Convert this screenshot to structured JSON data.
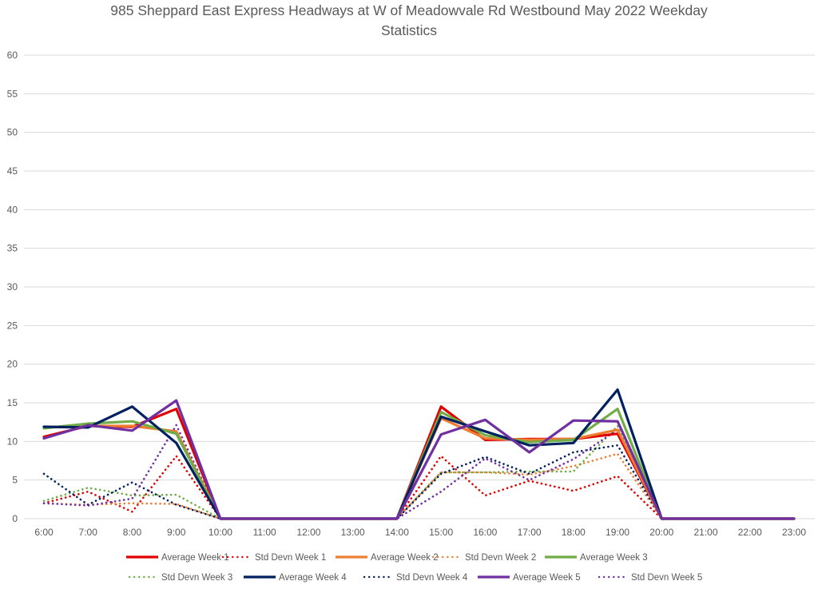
{
  "chart_data": {
    "type": "line",
    "title": "985 Sheppard East Express Headways at W of Meadowvale Rd Westbound May 2022 Weekday Statistics",
    "title_lines": [
      "985 Sheppard East Express Headways at W of Meadowvale Rd Westbound May 2022 Weekday",
      "Statistics"
    ],
    "xlabel": "",
    "ylabel": "",
    "ylim": [
      0,
      60
    ],
    "yticks": [
      0,
      5,
      10,
      15,
      20,
      25,
      30,
      35,
      40,
      45,
      50,
      55,
      60
    ],
    "grid": true,
    "legend_position": "bottom",
    "categories": [
      "6:00",
      "7:00",
      "8:00",
      "9:00",
      "10:00",
      "11:00",
      "12:00",
      "13:00",
      "14:00",
      "15:00",
      "16:00",
      "17:00",
      "18:00",
      "19:00",
      "20:00",
      "21:00",
      "22:00",
      "23:00"
    ],
    "series": [
      {
        "name": "Average Week 1",
        "color": "#e00000",
        "style": "solid",
        "values": [
          10.6,
          12.0,
          11.9,
          14.2,
          0,
          0,
          0,
          0,
          0,
          14.5,
          10.2,
          10.3,
          10.3,
          11.0,
          0,
          0,
          0,
          0
        ]
      },
      {
        "name": "Std Devn Week 1",
        "color": "#e00000",
        "style": "dotted",
        "values": [
          2.0,
          3.5,
          0.9,
          8.1,
          0,
          0,
          0,
          0,
          0,
          8.1,
          3.0,
          4.9,
          3.6,
          5.5,
          0,
          0,
          0,
          0
        ]
      },
      {
        "name": "Average Week 2",
        "color": "#ed7d31",
        "style": "solid",
        "values": [
          11.8,
          12.0,
          12.0,
          11.3,
          0,
          0,
          0,
          0,
          0,
          13.0,
          10.4,
          10.2,
          10.3,
          11.5,
          0,
          0,
          0,
          0
        ]
      },
      {
        "name": "Std Devn Week 2",
        "color": "#ed7d31",
        "style": "dotted",
        "values": [
          2.0,
          1.8,
          2.0,
          1.9,
          0,
          0,
          0,
          0,
          0,
          6.0,
          6.0,
          5.7,
          6.8,
          8.4,
          0,
          0,
          0,
          0
        ]
      },
      {
        "name": "Average Week 3",
        "color": "#70ad47",
        "style": "solid",
        "values": [
          11.7,
          12.3,
          12.6,
          11.0,
          0,
          0,
          0,
          0,
          0,
          13.8,
          10.8,
          9.9,
          10.2,
          14.2,
          0,
          0,
          0,
          0
        ]
      },
      {
        "name": "Std Devn Week 3",
        "color": "#70ad47",
        "style": "dotted",
        "values": [
          2.3,
          4.0,
          3.0,
          3.1,
          0,
          0,
          0,
          0,
          0,
          6.0,
          6.0,
          6.1,
          6.1,
          12.0,
          0,
          0,
          0,
          0
        ]
      },
      {
        "name": "Average Week 4",
        "color": "#002060",
        "style": "solid",
        "values": [
          11.9,
          11.8,
          14.5,
          9.8,
          0,
          0,
          0,
          0,
          0,
          13.2,
          11.3,
          9.5,
          9.8,
          16.7,
          0,
          0,
          0,
          0
        ]
      },
      {
        "name": "Std Devn Week 4",
        "color": "#002060",
        "style": "dotted",
        "values": [
          5.8,
          1.8,
          4.7,
          1.8,
          0,
          0,
          0,
          0,
          0,
          5.8,
          8.0,
          5.8,
          8.6,
          9.5,
          0,
          0,
          0,
          0
        ]
      },
      {
        "name": "Average Week 5",
        "color": "#7030a0",
        "style": "solid",
        "values": [
          10.4,
          12.1,
          11.4,
          15.3,
          0,
          0,
          0,
          0,
          0,
          10.9,
          12.8,
          8.6,
          12.7,
          12.6,
          0,
          0,
          0,
          0
        ]
      },
      {
        "name": "Std Devn Week 5",
        "color": "#7030a0",
        "style": "dotted",
        "values": [
          2.0,
          1.7,
          2.6,
          12.1,
          0,
          0,
          0,
          0,
          0,
          3.5,
          7.8,
          5.0,
          7.7,
          11.5,
          0,
          0,
          0,
          0
        ]
      }
    ]
  }
}
